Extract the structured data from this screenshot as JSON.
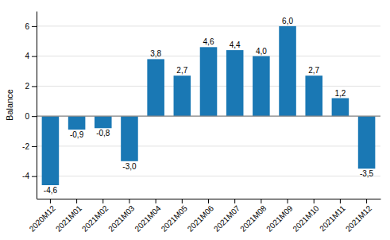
{
  "chart_data": {
    "type": "bar",
    "categories": [
      "2020M12",
      "2021M01",
      "2021M02",
      "2021M03",
      "2021M04",
      "2021M05",
      "2021M06",
      "2021M07",
      "2021M08",
      "2021M09",
      "2021M10",
      "2021M11",
      "2021M12"
    ],
    "values": [
      -4.6,
      -0.9,
      -0.8,
      -3.0,
      3.8,
      2.7,
      4.6,
      4.4,
      4.0,
      6.0,
      2.7,
      1.2,
      -3.5
    ],
    "value_labels": [
      "-4,6",
      "-0,9",
      "-0,8",
      "-3,0",
      "3,8",
      "2,7",
      "4,6",
      "4,4",
      "4,0",
      "6,0",
      "2,7",
      "1,2",
      "-3,5"
    ],
    "data_labels": true,
    "color": "#1a78b4",
    "ylabel": "Balance",
    "ylim": [
      -5.5,
      7.0
    ],
    "yticks": [
      -4,
      -2,
      0,
      2,
      4,
      6
    ],
    "grid": true
  }
}
